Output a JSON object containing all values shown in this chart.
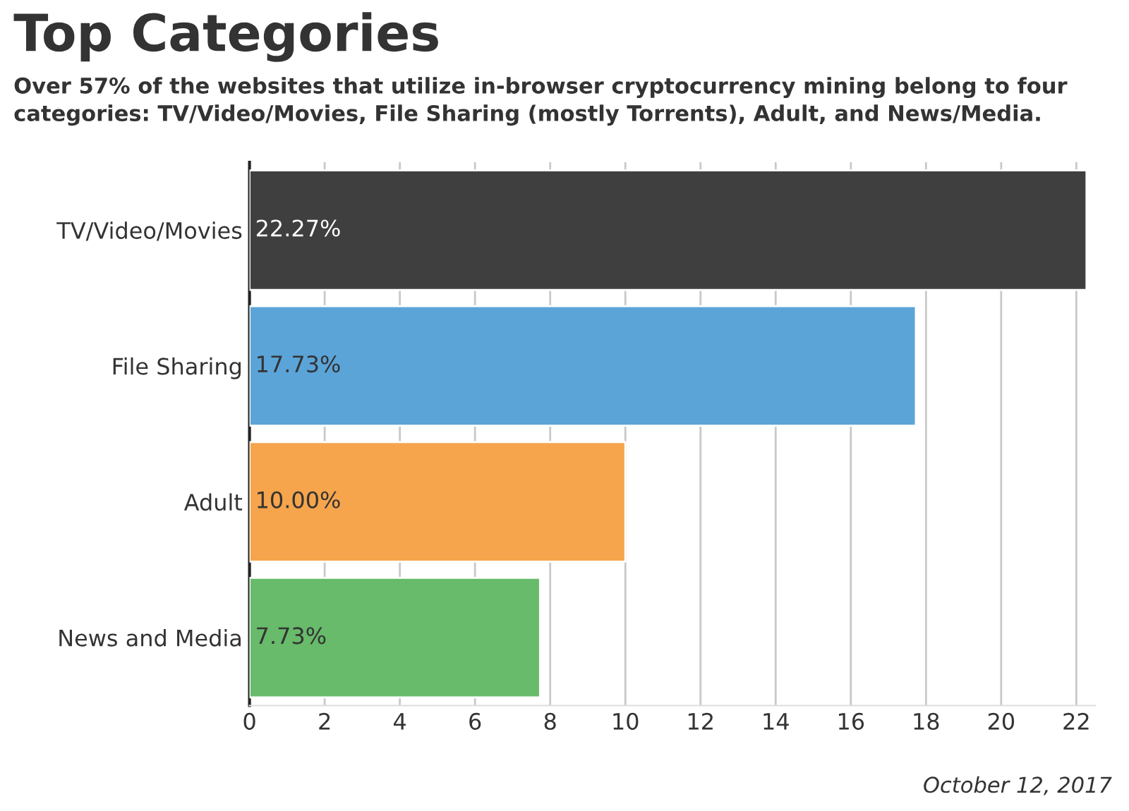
{
  "chart_data": {
    "type": "bar",
    "orientation": "horizontal",
    "title": "Top Categories",
    "subtitle": "Over 57% of the websites that utilize in-browser cryptocurrency mining belong to four categories: TV/Video/Movies, File Sharing (mostly Torrents), Adult, and News/Media.",
    "categories": [
      "TV/Video/Movies",
      "File Sharing",
      "Adult",
      "News and Media"
    ],
    "values": [
      22.27,
      17.73,
      10.0,
      7.73
    ],
    "value_labels": [
      "22.27%",
      "17.73%",
      "10.00%",
      "7.73%"
    ],
    "colors": [
      "#3f3f3f",
      "#5ba4d8",
      "#f6a54c",
      "#67bb6a"
    ],
    "xlim": [
      0,
      22.5
    ],
    "xticks": [
      0,
      2,
      4,
      6,
      8,
      10,
      12,
      14,
      16,
      18,
      20,
      22
    ],
    "grid": "x",
    "annotations": [
      "October 12, 2017"
    ]
  }
}
